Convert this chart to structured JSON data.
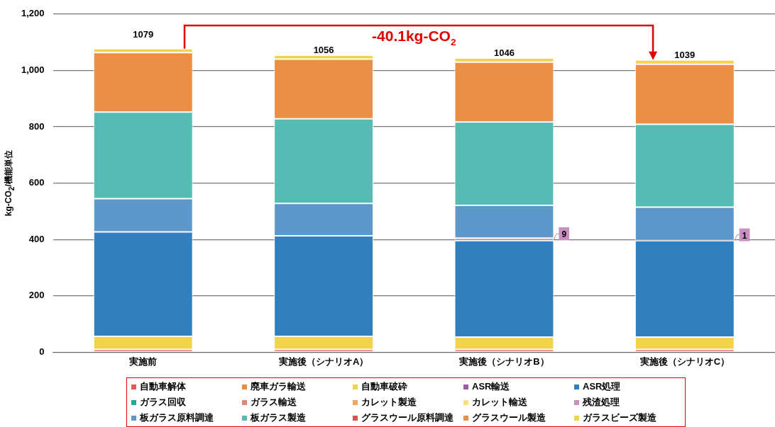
{
  "chart_data": {
    "type": "bar",
    "stacked": true,
    "ylabel": "kg-CO$_{2}$/機能単位",
    "categories": [
      "実施前",
      "実施後（シナリオA）",
      "実施後（シナリオB）",
      "実施後（シナリオC）"
    ],
    "ylim": [
      0,
      1200
    ],
    "yticks": [
      0,
      200,
      400,
      600,
      800,
      {
        "value": 1000,
        "label": "1,000"
      },
      {
        "value": 1200,
        "label": "1,200"
      }
    ],
    "grid": "y",
    "legend": "bottom",
    "annotations": [
      "-40.1kg-CO$_{2}$"
    ],
    "totals": [
      "1079",
      "1056",
      "1046",
      "1039"
    ],
    "series": [
      {
        "name": "自動車解体",
        "color": "#e05a5a",
        "values": [
          10,
          10,
          10,
          10
        ]
      },
      {
        "name": "廃車ガラ輸送",
        "color": "#ec8c3c",
        "values": [
          null,
          null,
          null,
          null
        ]
      },
      {
        "name": "自動車破砕",
        "color": "#f2d44c",
        "values": [
          46,
          46,
          44,
          44
        ]
      },
      {
        "name": "ASR輸送",
        "color": "#a05aa8",
        "values": [
          0,
          0,
          0,
          0
        ]
      },
      {
        "name": "ASR処理",
        "color": "#337ebd",
        "values": [
          371,
          357,
          342,
          342
        ]
      },
      {
        "name": "ガラス回収",
        "color": "#26a69a",
        "values": [
          0,
          0,
          0,
          0
        ]
      },
      {
        "name": "ガラス輸送",
        "color": "#e8837a",
        "values": [
          0,
          0,
          0,
          0
        ]
      },
      {
        "name": "カレット製造",
        "color": "#f0a860",
        "values": [
          0,
          0,
          0,
          0
        ]
      },
      {
        "name": "カレット輸送",
        "color": "#f8e07a",
        "values": [
          0,
          0,
          0,
          0
        ]
      },
      {
        "name": "残渣処理",
        "color": "#c890c0",
        "values": [
          0,
          0,
          9,
          1
        ],
        "value_labels": [
          null,
          null,
          "9",
          "1"
        ]
      },
      {
        "name": "板ガラス原料調達",
        "color": "#5e97c9",
        "values": [
          118,
          115,
          116,
          118
        ]
      },
      {
        "name": "板ガラス製造",
        "color": "#55bbb3",
        "values": [
          307,
          300,
          296,
          294
        ]
      },
      {
        "name": "グラスウール原料調達",
        "color": "#d9534f",
        "values": [
          0,
          0,
          0,
          0
        ]
      },
      {
        "name": "グラスウール製造",
        "color": "#ea8f45",
        "values": [
          211,
          212,
          212,
          213
        ]
      },
      {
        "name": "ガラスビーズ製造",
        "color": "#f2d34f",
        "values": [
          14,
          14,
          15,
          15
        ]
      }
    ]
  }
}
